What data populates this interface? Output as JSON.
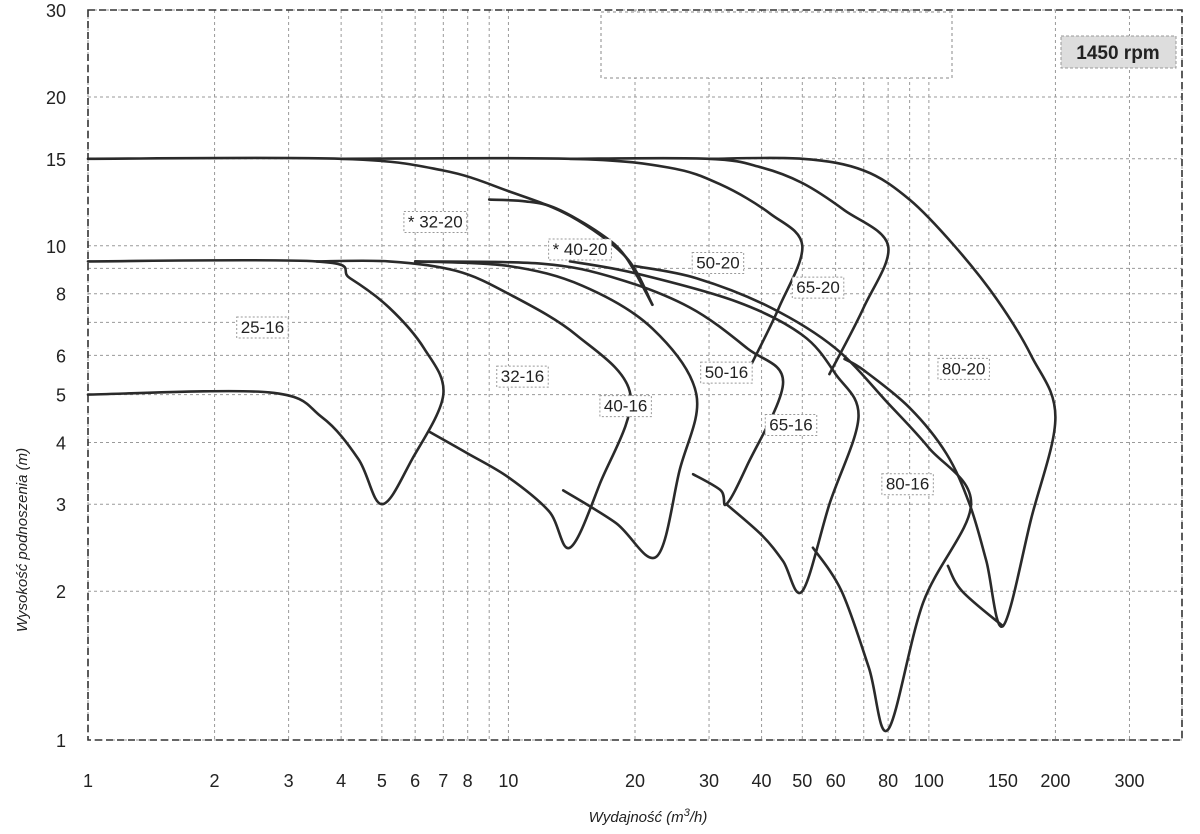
{
  "chart_data": {
    "type": "line",
    "title": "",
    "speed_badge": "1450 rpm",
    "xlabel": "Wydajność (m³/h)",
    "xlabel_parts": {
      "main": "Wydajność (m",
      "sup": "3",
      "tail": "/h)"
    },
    "ylabel": "Wysokość podnoszenia (m)",
    "x_scale": "log",
    "y_scale": "log",
    "xlim": [
      1,
      400
    ],
    "ylim": [
      1,
      30
    ],
    "grid": true,
    "x_ticks": [
      1,
      2,
      3,
      4,
      5,
      6,
      7,
      8,
      10,
      20,
      30,
      40,
      50,
      60,
      80,
      100,
      150,
      200,
      300
    ],
    "x_tick_labels": [
      "1",
      "2",
      "3",
      "4",
      "5",
      "6",
      "7",
      "8",
      "10",
      "20",
      "30",
      "40",
      "50",
      "60",
      "80",
      "100",
      "150",
      "200",
      "300"
    ],
    "x_grid": [
      1,
      2,
      3,
      4,
      5,
      6,
      7,
      8,
      9,
      10,
      20,
      30,
      40,
      50,
      60,
      70,
      80,
      90,
      100,
      200,
      300,
      400
    ],
    "y_ticks": [
      1,
      2,
      3,
      4,
      5,
      6,
      8,
      10,
      15,
      20,
      30
    ],
    "y_tick_labels": [
      "1",
      "2",
      "3",
      "4",
      "5",
      "6",
      "8",
      "10",
      "15",
      "20",
      "30"
    ],
    "y_grid": [
      1,
      2,
      3,
      4,
      5,
      6,
      7,
      8,
      9,
      10,
      15,
      20,
      30
    ],
    "series": [
      {
        "name": "25-16",
        "boundary": [
          [
            1,
            5
          ],
          [
            2.7,
            5.05
          ],
          [
            3.6,
            4.5
          ],
          [
            4.4,
            3.7
          ],
          [
            5,
            3
          ],
          [
            5.9,
            3.7
          ],
          [
            7,
            5
          ],
          [
            6.3,
            6.2
          ],
          [
            5.2,
            7.5
          ],
          [
            4.2,
            8.6
          ],
          [
            3.5,
            9.3
          ],
          [
            1,
            9.3
          ]
        ]
      },
      {
        "name": "32-16",
        "boundary": [
          [
            6.5,
            4.2
          ],
          [
            8,
            3.8
          ],
          [
            10,
            3.4
          ],
          [
            12.5,
            2.9
          ],
          [
            14,
            2.45
          ],
          [
            16.5,
            3.3
          ],
          [
            19.5,
            5
          ],
          [
            14.5,
            6.6
          ],
          [
            10,
            8
          ],
          [
            7.5,
            8.9
          ],
          [
            5.2,
            9.3
          ],
          [
            3.5,
            9.3
          ]
        ]
      },
      {
        "name": "40-16",
        "boundary": [
          [
            13.5,
            3.2
          ],
          [
            18,
            2.75
          ],
          [
            22.5,
            2.35
          ],
          [
            25.5,
            3.5
          ],
          [
            28,
            5
          ],
          [
            22,
            6.8
          ],
          [
            15,
            8.3
          ],
          [
            10,
            9.1
          ],
          [
            6,
            9.3
          ]
        ]
      },
      {
        "name": "50-16",
        "boundary": [
          [
            27.5,
            3.45
          ],
          [
            32,
            3.2
          ],
          [
            33,
            3.0
          ],
          [
            37,
            3.6
          ],
          [
            45,
            5.3
          ],
          [
            37,
            6.2
          ],
          [
            27,
            7.5
          ],
          [
            18,
            8.6
          ],
          [
            12,
            9.2
          ],
          [
            6,
            9.3
          ]
        ]
      },
      {
        "name": "65-16",
        "boundary": [
          [
            33,
            3.0
          ],
          [
            40,
            2.6
          ],
          [
            45,
            2.3
          ],
          [
            50,
            2.0
          ],
          [
            58,
            3.0
          ],
          [
            68,
            4.5
          ],
          [
            60,
            5.5
          ],
          [
            50,
            6.6
          ],
          [
            35,
            7.7
          ],
          [
            20,
            8.8
          ],
          [
            14,
            9.3
          ]
        ]
      },
      {
        "name": "80-16",
        "boundary": [
          [
            53,
            2.45
          ],
          [
            62,
            2.0
          ],
          [
            72,
            1.4
          ],
          [
            80,
            1.05
          ],
          [
            97,
            1.9
          ],
          [
            126,
            3.0
          ],
          [
            100,
            3.9
          ],
          [
            80,
            4.8
          ],
          [
            60,
            6.2
          ],
          [
            42,
            7.5
          ],
          [
            28,
            8.6
          ],
          [
            20,
            9.1
          ]
        ]
      },
      {
        "name": "* 32-20",
        "boundary": [
          [
            22,
            7.6
          ],
          [
            19,
            9.5
          ],
          [
            14,
            11.5
          ],
          [
            10,
            12.9
          ],
          [
            7,
            14.2
          ],
          [
            4,
            15
          ],
          [
            1,
            15
          ]
        ]
      },
      {
        "name": "* 40-20",
        "boundary": [
          [
            9,
            12.4
          ],
          [
            11,
            12.3
          ],
          [
            13,
            11.9
          ],
          [
            16.5,
            10.6
          ],
          [
            19,
            9.5
          ],
          [
            22,
            7.6
          ]
        ]
      },
      {
        "name": "50-20",
        "boundary": [
          [
            38,
            5.8
          ],
          [
            44,
            7.5
          ],
          [
            50,
            10
          ],
          [
            42,
            11.6
          ],
          [
            32,
            13.3
          ],
          [
            24,
            14.4
          ],
          [
            14,
            15
          ],
          [
            4,
            15
          ]
        ]
      },
      {
        "name": "65-20",
        "boundary": [
          [
            58,
            5.5
          ],
          [
            70,
            7.5
          ],
          [
            80,
            10
          ],
          [
            63,
            11.8
          ],
          [
            50,
            13.4
          ],
          [
            40,
            14.4
          ],
          [
            30,
            15
          ],
          [
            14,
            15
          ]
        ]
      },
      {
        "name": "80-20",
        "boundary": [
          [
            63,
            5.9
          ],
          [
            70,
            5.6
          ],
          [
            90,
            4.7
          ],
          [
            110,
            3.8
          ],
          [
            125,
            3.0
          ],
          [
            137,
            2.3
          ],
          [
            150,
            1.7
          ],
          [
            175,
            2.8
          ],
          [
            200,
            4.5
          ],
          [
            175,
            6.0
          ],
          [
            145,
            7.8
          ],
          [
            115,
            10
          ],
          [
            90,
            12.4
          ],
          [
            70,
            14.2
          ],
          [
            50,
            15
          ],
          [
            30,
            15
          ]
        ]
      },
      {
        "name": "",
        "boundary": [
          [
            111,
            2.25
          ],
          [
            120,
            2.0
          ],
          [
            150,
            1.7
          ]
        ]
      }
    ],
    "curve_labels": [
      {
        "text": "25-16",
        "x": 2.6,
        "y": 6.85
      },
      {
        "text": "32-16",
        "x": 10.8,
        "y": 5.45
      },
      {
        "text": "40-16",
        "x": 19,
        "y": 4.75
      },
      {
        "text": "50-16",
        "x": 33,
        "y": 5.55
      },
      {
        "text": "65-16",
        "x": 47,
        "y": 4.35
      },
      {
        "text": "80-16",
        "x": 89,
        "y": 3.3
      },
      {
        "text": "* 32-20",
        "x": 6.7,
        "y": 11.2
      },
      {
        "text": "* 40-20",
        "x": 14.8,
        "y": 9.85
      },
      {
        "text": "50-20",
        "x": 31.5,
        "y": 9.25
      },
      {
        "text": "65-20",
        "x": 54.5,
        "y": 8.25
      },
      {
        "text": "80-20",
        "x": 121,
        "y": 5.65
      }
    ]
  }
}
